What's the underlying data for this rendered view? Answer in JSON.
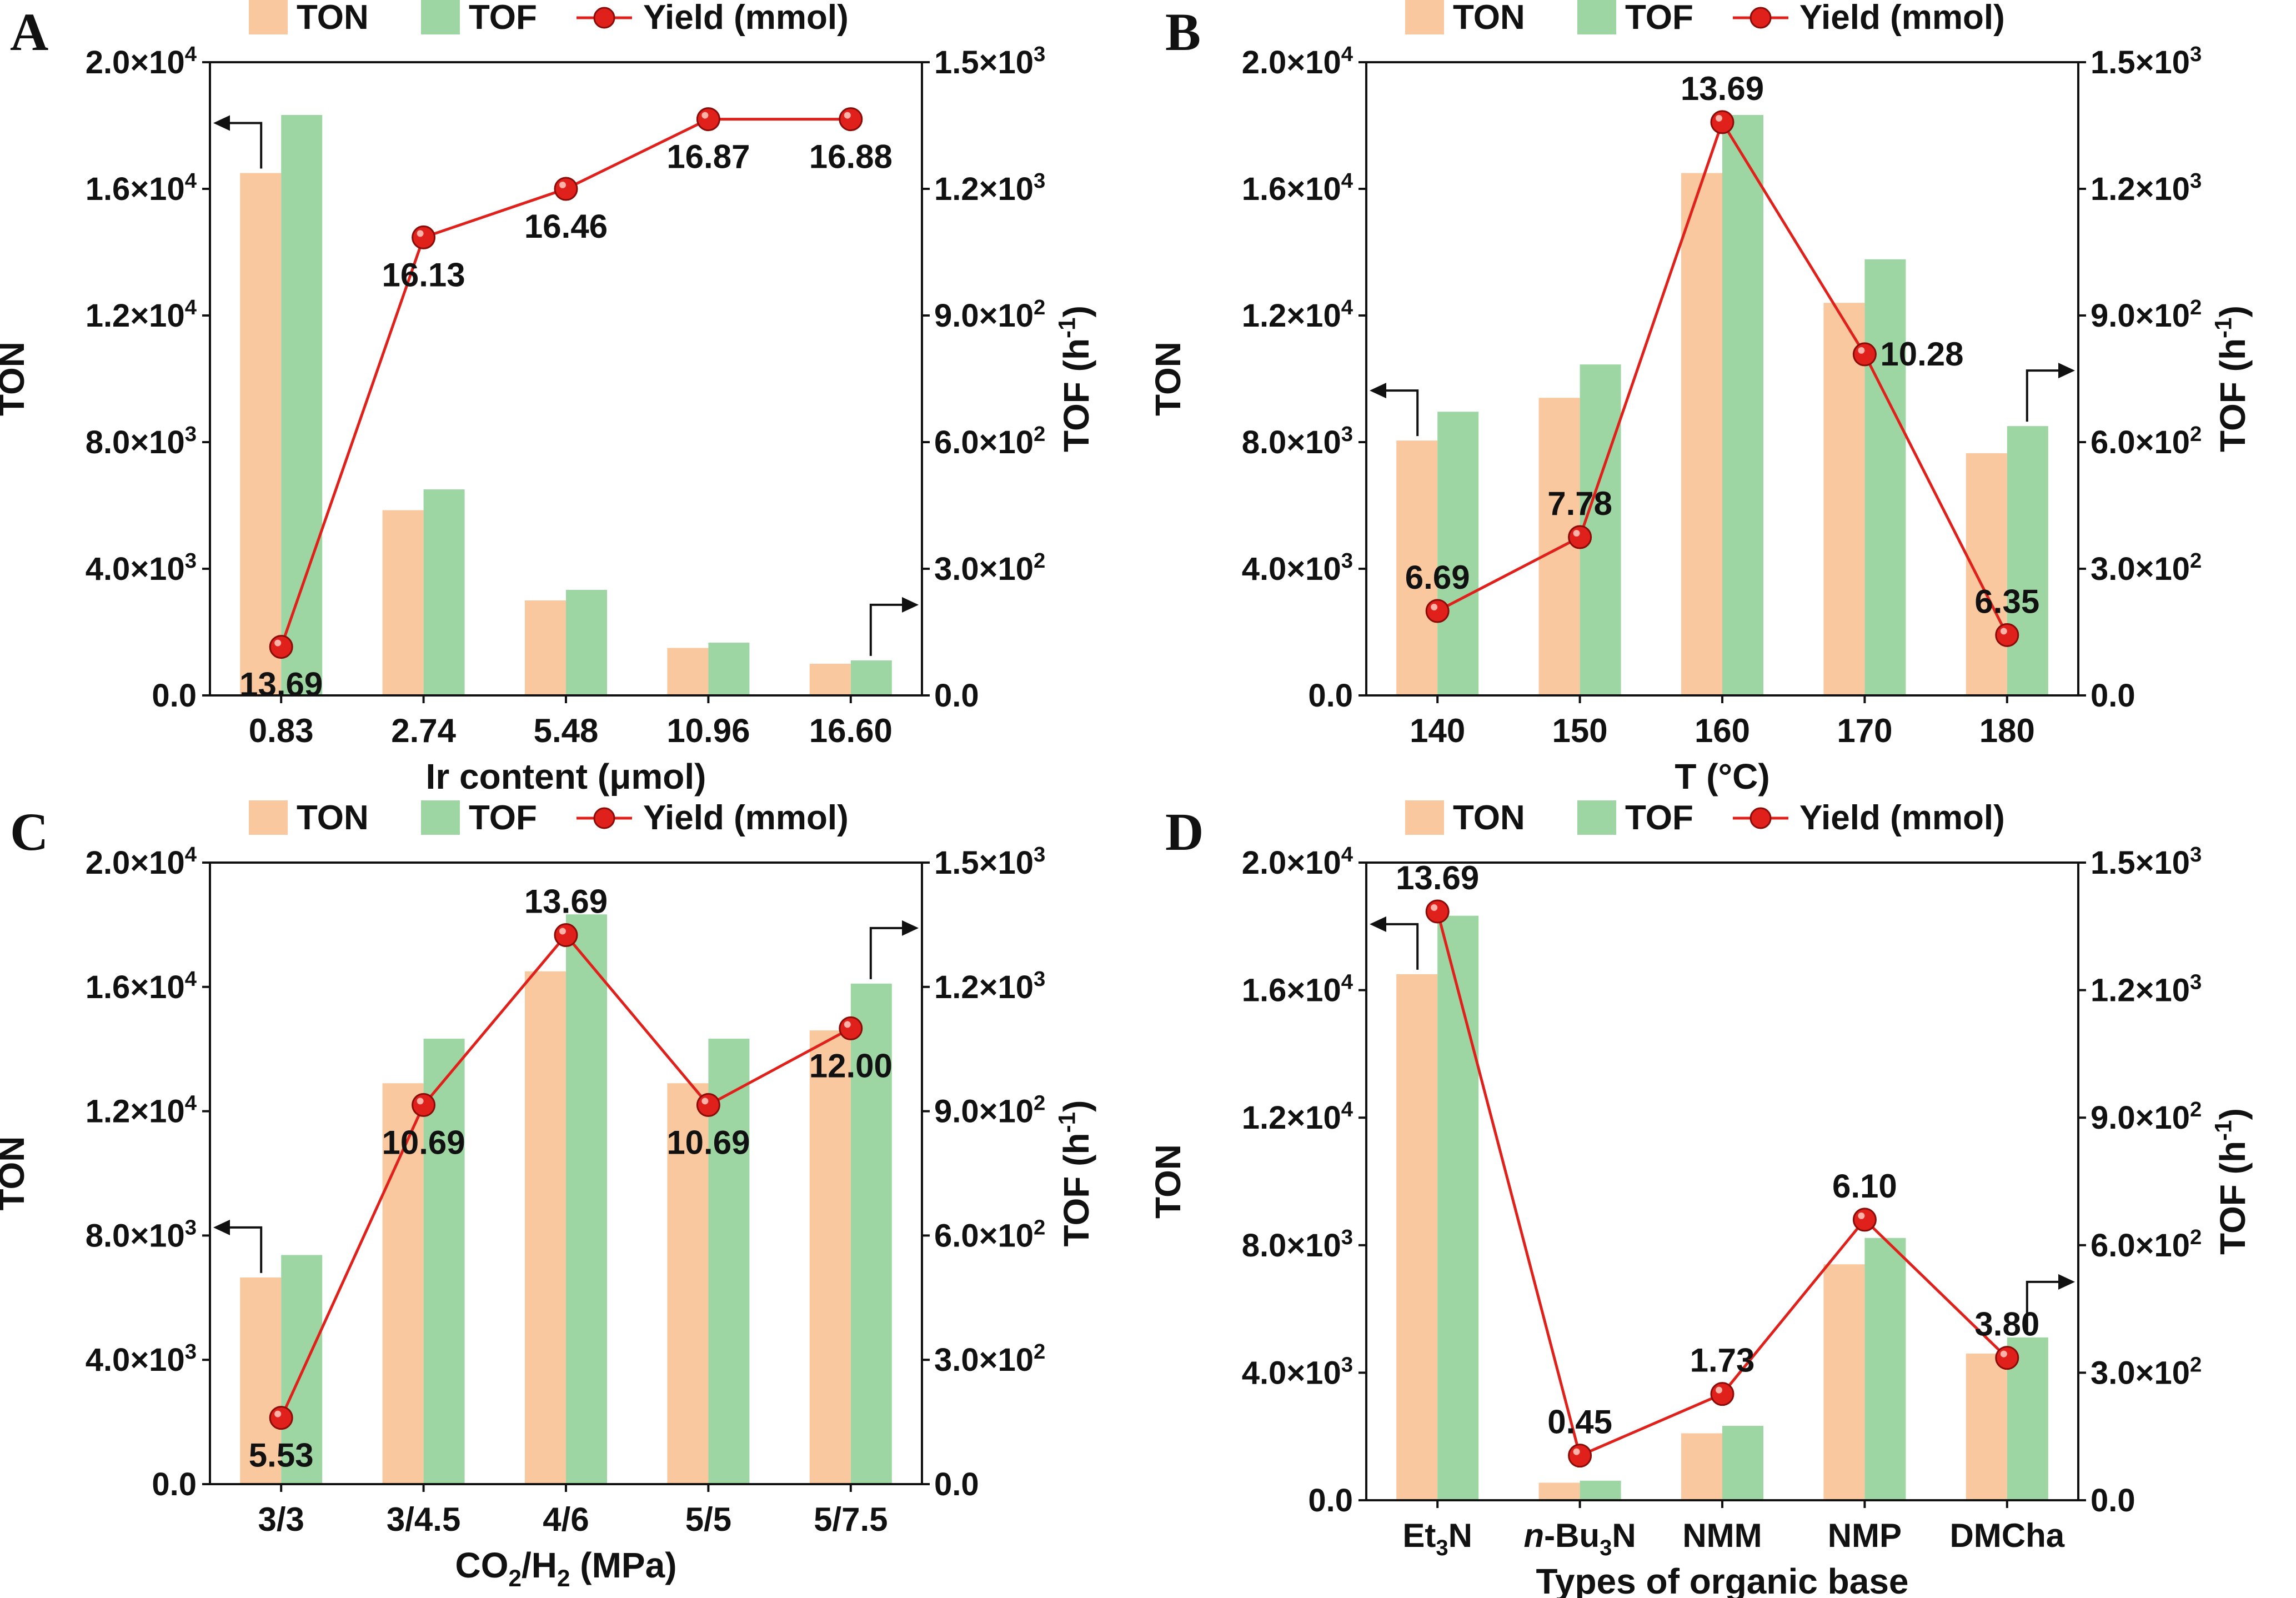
{
  "figure": {
    "series_colors": {
      "ton": "#F9C89E",
      "tof": "#9ED6A3",
      "yield": "#E0211B"
    },
    "charts": [
      {
        "panel": "A",
        "type": "bar",
        "xlabel": "Ir content (μmol)",
        "categories": [
          "0.83",
          "2.74",
          "5.48",
          "10.96",
          "16.60"
        ],
        "series": [
          {
            "name": "TON",
            "axis": "left",
            "values": [
              16500,
              5850,
              3000,
              1500,
              1000
            ]
          },
          {
            "name": "TOF",
            "axis": "right",
            "values": [
              1375,
              488,
              250,
              125,
              83
            ]
          },
          {
            "name": "Yield (mmol)",
            "type": "line",
            "axis": "right",
            "values": [
              115,
              1085,
              1200,
              1365,
              1365
            ]
          }
        ],
        "point_labels": [
          "13.69",
          "16.13",
          "16.46",
          "16.87",
          "16.88"
        ],
        "label_side": [
          "below",
          "below",
          "below",
          "below",
          "below"
        ],
        "ylabel_left": "TON",
        "ylabel_right": "TOF (h⁻¹)",
        "yticks_left": [
          "0.0",
          "4.0×10³",
          "8.0×10³",
          "1.2×10⁴",
          "1.6×10⁴",
          "2.0×10⁴"
        ],
        "yticks_right": [
          "0.0",
          "3.0×10²",
          "6.0×10²",
          "9.0×10²",
          "1.2×10³",
          "1.5×10³"
        ],
        "ylim_left": [
          0,
          20000
        ],
        "ylim_right": [
          0,
          1500
        ],
        "legend": [
          "TON",
          "TOF",
          "Yield (mmol)"
        ],
        "arrows": [
          {
            "bar": 0,
            "dir": "left"
          },
          {
            "bar": 4,
            "dir": "right"
          }
        ]
      },
      {
        "panel": "B",
        "type": "bar",
        "xlabel": "T (°C)",
        "categories": [
          "140",
          "150",
          "160",
          "170",
          "180"
        ],
        "series": [
          {
            "name": "TON",
            "axis": "left",
            "values": [
              8050,
              9400,
              16500,
              12400,
              7650
            ]
          },
          {
            "name": "TOF",
            "axis": "right",
            "values": [
              672,
              784,
              1375,
              1033,
              638
            ]
          },
          {
            "name": "Yield (mmol)",
            "type": "line",
            "axis": "right",
            "values": [
              200,
              375,
              1358,
              808,
              143
            ]
          }
        ],
        "point_labels": [
          "6.69",
          "7.78",
          "13.69",
          "10.28",
          "6.35"
        ],
        "label_side": [
          "above",
          "above",
          "above",
          "right",
          "above"
        ],
        "ylabel_left": "TON",
        "ylabel_right": "TOF (h⁻¹)",
        "yticks_left": [
          "0.0",
          "4.0×10³",
          "8.0×10³",
          "1.2×10⁴",
          "1.6×10⁴",
          "2.0×10⁴"
        ],
        "yticks_right": [
          "0.0",
          "3.0×10²",
          "6.0×10²",
          "9.0×10²",
          "1.2×10³",
          "1.5×10³"
        ],
        "ylim_left": [
          0,
          20000
        ],
        "ylim_right": [
          0,
          1500
        ],
        "legend": [
          "TON",
          "TOF",
          "Yield (mmol)"
        ],
        "arrows": [
          {
            "bar": 0,
            "dir": "left"
          },
          {
            "bar": 4,
            "dir": "right"
          }
        ]
      },
      {
        "panel": "C",
        "type": "bar",
        "xlabel": "CO₂/H₂ (MPa)",
        "categories": [
          "3/3",
          "3/4.5",
          "4/6",
          "5/5",
          "5/7.5"
        ],
        "series": [
          {
            "name": "TON",
            "axis": "left",
            "values": [
              6650,
              12900,
              16500,
              12900,
              14600
            ]
          },
          {
            "name": "TOF",
            "axis": "right",
            "values": [
              553,
              1075,
              1375,
              1075,
              1208
            ]
          },
          {
            "name": "Yield (mmol)",
            "type": "line",
            "axis": "right",
            "values": [
              160,
              915,
              1325,
              915,
              1100
            ]
          }
        ],
        "point_labels": [
          "5.53",
          "10.69",
          "13.69",
          "10.69",
          "12.00"
        ],
        "label_side": [
          "below",
          "below",
          "above",
          "below",
          "below"
        ],
        "ylabel_left": "TON",
        "ylabel_right": "TOF (h⁻¹)",
        "yticks_left": [
          "0.0",
          "4.0×10³",
          "8.0×10³",
          "1.2×10⁴",
          "1.6×10⁴",
          "2.0×10⁴"
        ],
        "yticks_right": [
          "0.0",
          "3.0×10²",
          "6.0×10²",
          "9.0×10²",
          "1.2×10³",
          "1.5×10³"
        ],
        "ylim_left": [
          0,
          20000
        ],
        "ylim_right": [
          0,
          1500
        ],
        "legend": [
          "TON",
          "TOF",
          "Yield (mmol)"
        ],
        "arrows": [
          {
            "bar": 0,
            "dir": "left"
          },
          {
            "bar": 4,
            "dir": "right"
          }
        ]
      },
      {
        "panel": "D",
        "type": "bar",
        "xlabel": "Types of organic base",
        "categories": [
          "Et₃N",
          "n-Bu₃N",
          "NMM",
          "NMP",
          "DMCha"
        ],
        "series": [
          {
            "name": "TON",
            "axis": "left",
            "values": [
              16500,
              550,
              2100,
              7400,
              4600
            ]
          },
          {
            "name": "TOF",
            "axis": "right",
            "values": [
              1375,
              46,
              175,
              617,
              383
            ]
          },
          {
            "name": "Yield (mmol)",
            "type": "line",
            "axis": "right",
            "values": [
              1385,
              105,
              250,
              660,
              335
            ]
          }
        ],
        "point_labels": [
          "13.69",
          "0.45",
          "1.73",
          "6.10",
          "3.80"
        ],
        "label_side": [
          "above",
          "above",
          "above",
          "above",
          "above"
        ],
        "ylabel_left": "TON",
        "ylabel_right": "TOF (h⁻¹)",
        "yticks_left": [
          "0.0",
          "4.0×10³",
          "8.0×10³",
          "1.2×10⁴",
          "1.6×10⁴",
          "2.0×10⁴"
        ],
        "yticks_right": [
          "0.0",
          "3.0×10²",
          "6.0×10²",
          "9.0×10²",
          "1.2×10³",
          "1.5×10³"
        ],
        "ylim_left": [
          0,
          20000
        ],
        "ylim_right": [
          0,
          1500
        ],
        "legend": [
          "TON",
          "TOF",
          "Yield (mmol)"
        ],
        "arrows": [
          {
            "bar": 0,
            "dir": "left"
          },
          {
            "bar": 4,
            "dir": "right"
          }
        ]
      }
    ]
  }
}
